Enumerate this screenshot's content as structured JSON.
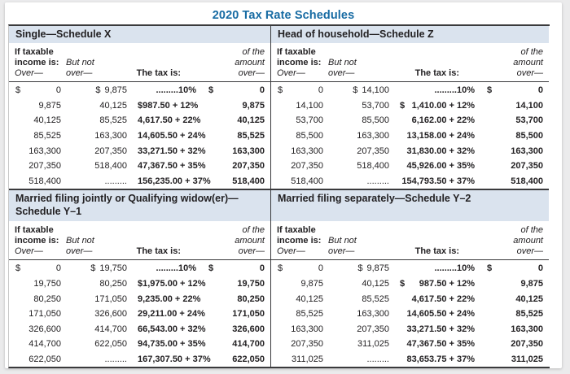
{
  "title": "2020 Tax Rate Schedules",
  "colors": {
    "title_blue": "#176ba3",
    "band_blue": "#dae3ee",
    "rule_dark": "#3a3a3c",
    "page_background": "#ebebec",
    "panel_background": "#ffffff",
    "text": "#232123"
  },
  "column_headers": {
    "if_taxable_line1": "If taxable",
    "if_taxable_line2": "income is:",
    "over": "Over—",
    "but_not_line1": "But not",
    "but_not_line2": "over—",
    "tax_is": "The tax is:",
    "amount_line1": "of the",
    "amount_line2": "amount",
    "amount_line3": "over—"
  },
  "schedules": [
    {
      "id": "single-schedule-x",
      "band_lines": [
        "Single—Schedule X"
      ],
      "rows": [
        {
          "over_d": "$",
          "over": "0",
          "butnot_d": "$",
          "butnot": "9,875",
          "tax_d": "",
          "tax": ".........10%",
          "amt_d": "$",
          "amt": "0"
        },
        {
          "over_d": "",
          "over": "9,875",
          "butnot_d": "",
          "butnot": "40,125",
          "tax_d": "$",
          "tax": "987.50 + 12%",
          "amt_d": "",
          "amt": "9,875"
        },
        {
          "over_d": "",
          "over": "40,125",
          "butnot_d": "",
          "butnot": "85,525",
          "tax_d": "",
          "tax": "4,617.50 + 22%",
          "amt_d": "",
          "amt": "40,125"
        },
        {
          "over_d": "",
          "over": "85,525",
          "butnot_d": "",
          "butnot": "163,300",
          "tax_d": "",
          "tax": "14,605.50 + 24%",
          "amt_d": "",
          "amt": "85,525"
        },
        {
          "over_d": "",
          "over": "163,300",
          "butnot_d": "",
          "butnot": "207,350",
          "tax_d": "",
          "tax": "33,271.50 + 32%",
          "amt_d": "",
          "amt": "163,300"
        },
        {
          "over_d": "",
          "over": "207,350",
          "butnot_d": "",
          "butnot": "518,400",
          "tax_d": "",
          "tax": "47,367.50 + 35%",
          "amt_d": "",
          "amt": "207,350"
        },
        {
          "over_d": "",
          "over": "518,400",
          "butnot_d": "",
          "butnot": ".........",
          "tax_d": "",
          "tax": "156,235.00 + 37%",
          "amt_d": "",
          "amt": "518,400"
        }
      ]
    },
    {
      "id": "head-of-household-schedule-z",
      "band_lines": [
        "Head of household—Schedule Z"
      ],
      "rows": [
        {
          "over_d": "$",
          "over": "0",
          "butnot_d": "$",
          "butnot": "14,100",
          "tax_d": "",
          "tax": ".........10%",
          "amt_d": "$",
          "amt": "0"
        },
        {
          "over_d": "",
          "over": "14,100",
          "butnot_d": "",
          "butnot": "53,700",
          "tax_d": "$",
          "tax": "1,410.00 + 12%",
          "amt_d": "",
          "amt": "14,100"
        },
        {
          "over_d": "",
          "over": "53,700",
          "butnot_d": "",
          "butnot": "85,500",
          "tax_d": "",
          "tax": "6,162.00 + 22%",
          "amt_d": "",
          "amt": "53,700"
        },
        {
          "over_d": "",
          "over": "85,500",
          "butnot_d": "",
          "butnot": "163,300",
          "tax_d": "",
          "tax": "13,158.00 + 24%",
          "amt_d": "",
          "amt": "85,500"
        },
        {
          "over_d": "",
          "over": "163,300",
          "butnot_d": "",
          "butnot": "207,350",
          "tax_d": "",
          "tax": "31,830.00 + 32%",
          "amt_d": "",
          "amt": "163,300"
        },
        {
          "over_d": "",
          "over": "207,350",
          "butnot_d": "",
          "butnot": "518,400",
          "tax_d": "",
          "tax": "45,926.00 + 35%",
          "amt_d": "",
          "amt": "207,350"
        },
        {
          "over_d": "",
          "over": "518,400",
          "butnot_d": "",
          "butnot": ".........",
          "tax_d": "",
          "tax": "154,793.50 + 37%",
          "amt_d": "",
          "amt": "518,400"
        }
      ]
    },
    {
      "id": "married-filing-jointly-schedule-y1",
      "band_lines": [
        "Married filing jointly or Qualifying widow(er)—",
        "Schedule Y–1"
      ],
      "rows": [
        {
          "over_d": "$",
          "over": "0",
          "butnot_d": "$",
          "butnot": "19,750",
          "tax_d": "",
          "tax": ".........10%",
          "amt_d": "$",
          "amt": "0"
        },
        {
          "over_d": "",
          "over": "19,750",
          "butnot_d": "",
          "butnot": "80,250",
          "tax_d": "$",
          "tax": "1,975.00 + 12%",
          "amt_d": "",
          "amt": "19,750"
        },
        {
          "over_d": "",
          "over": "80,250",
          "butnot_d": "",
          "butnot": "171,050",
          "tax_d": "",
          "tax": "9,235.00 + 22%",
          "amt_d": "",
          "amt": "80,250"
        },
        {
          "over_d": "",
          "over": "171,050",
          "butnot_d": "",
          "butnot": "326,600",
          "tax_d": "",
          "tax": "29,211.00 + 24%",
          "amt_d": "",
          "amt": "171,050"
        },
        {
          "over_d": "",
          "over": "326,600",
          "butnot_d": "",
          "butnot": "414,700",
          "tax_d": "",
          "tax": "66,543.00 + 32%",
          "amt_d": "",
          "amt": "326,600"
        },
        {
          "over_d": "",
          "over": "414,700",
          "butnot_d": "",
          "butnot": "622,050",
          "tax_d": "",
          "tax": "94,735.00 + 35%",
          "amt_d": "",
          "amt": "414,700"
        },
        {
          "over_d": "",
          "over": "622,050",
          "butnot_d": "",
          "butnot": ".........",
          "tax_d": "",
          "tax": "167,307.50 + 37%",
          "amt_d": "",
          "amt": "622,050"
        }
      ]
    },
    {
      "id": "married-filing-separately-schedule-y2",
      "band_lines": [
        "Married filing separately—Schedule Y–2"
      ],
      "rows": [
        {
          "over_d": "$",
          "over": "0",
          "butnot_d": "$",
          "butnot": "9,875",
          "tax_d": "",
          "tax": ".........10%",
          "amt_d": "$",
          "amt": "0"
        },
        {
          "over_d": "",
          "over": "9,875",
          "butnot_d": "",
          "butnot": "40,125",
          "tax_d": "$",
          "tax": "987.50 + 12%",
          "amt_d": "",
          "amt": "9,875"
        },
        {
          "over_d": "",
          "over": "40,125",
          "butnot_d": "",
          "butnot": "85,525",
          "tax_d": "",
          "tax": "4,617.50 + 22%",
          "amt_d": "",
          "amt": "40,125"
        },
        {
          "over_d": "",
          "over": "85,525",
          "butnot_d": "",
          "butnot": "163,300",
          "tax_d": "",
          "tax": "14,605.50 + 24%",
          "amt_d": "",
          "amt": "85,525"
        },
        {
          "over_d": "",
          "over": "163,300",
          "butnot_d": "",
          "butnot": "207,350",
          "tax_d": "",
          "tax": "33,271.50 + 32%",
          "amt_d": "",
          "amt": "163,300"
        },
        {
          "over_d": "",
          "over": "207,350",
          "butnot_d": "",
          "butnot": "311,025",
          "tax_d": "",
          "tax": "47,367.50 + 35%",
          "amt_d": "",
          "amt": "207,350"
        },
        {
          "over_d": "",
          "over": "311,025",
          "butnot_d": "",
          "butnot": ".........",
          "tax_d": "",
          "tax": "83,653.75 + 37%",
          "amt_d": "",
          "amt": "311,025"
        }
      ]
    }
  ]
}
